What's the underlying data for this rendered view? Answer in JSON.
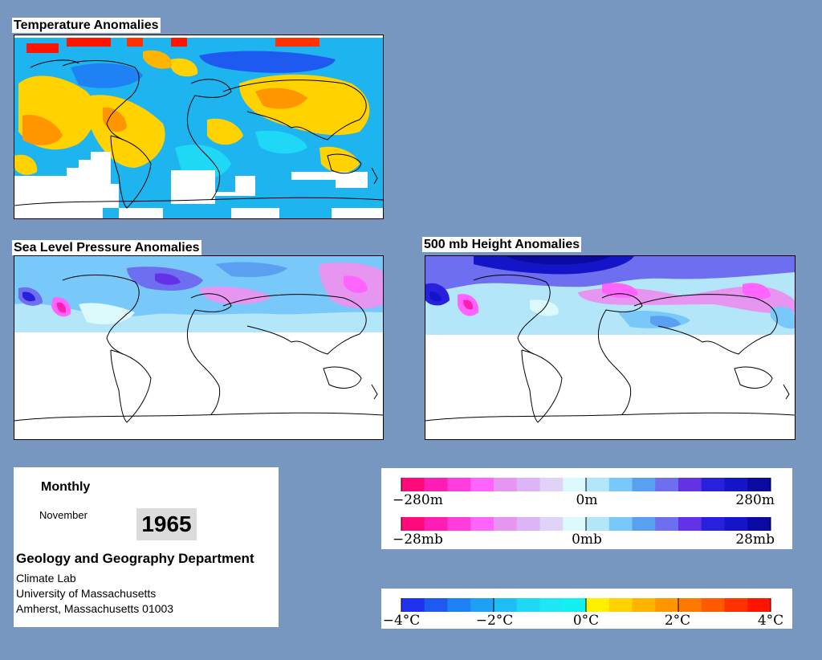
{
  "panels": {
    "temperature": {
      "title": "Temperature Anomalies"
    },
    "slp": {
      "title": "Sea Level Pressure Anomalies"
    },
    "height": {
      "title": "500 mb Height Anomalies"
    }
  },
  "info": {
    "period": "Monthly",
    "month": "November",
    "year": "1965",
    "department": "Geology and Geography Department",
    "lines": [
      "Climate Lab",
      "University of Massachusetts",
      "Amherst, Massachusetts 01003"
    ]
  },
  "legends": {
    "height_labels": [
      "−280m",
      "0m",
      "280m"
    ],
    "pressure_labels": [
      "−28mb",
      "0mb",
      "28mb"
    ],
    "pressure_colors": [
      "#ff0a7a",
      "#ff1eb4",
      "#ff3cdc",
      "#ff64ff",
      "#e696f0",
      "#dcb4f5",
      "#e1d2f8",
      "#dcfafc",
      "#b4e6fa",
      "#78c8fa",
      "#5aa0f0",
      "#6e6ef0",
      "#6432e6",
      "#2820dc",
      "#1414c8",
      "#0a0aa0"
    ],
    "temp_labels": [
      "−4°C",
      "−2°C",
      "0°C",
      "2°C",
      "4°C"
    ],
    "temp_colors": [
      "#1e32f0",
      "#1e5af0",
      "#1e82f5",
      "#1ea0f5",
      "#1ebef5",
      "#1ed8f5",
      "#1ee6f5",
      "#14f0f0",
      "#fff000",
      "#ffd200",
      "#ffb400",
      "#ff9600",
      "#ff7800",
      "#ff5a00",
      "#ff3200",
      "#ff1400"
    ]
  }
}
